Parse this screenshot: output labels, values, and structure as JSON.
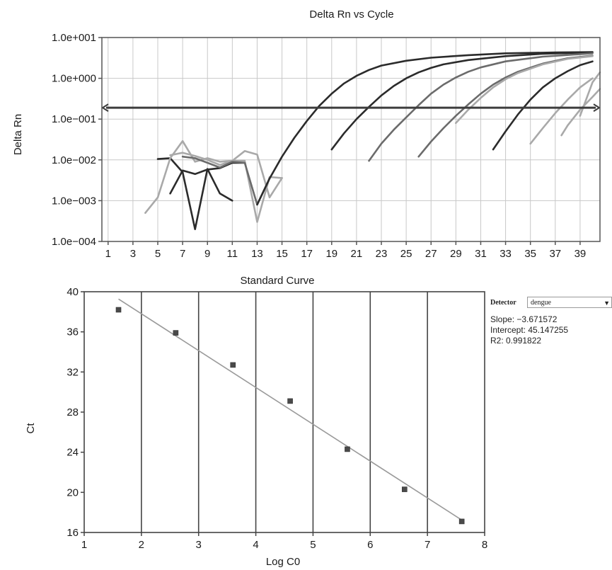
{
  "chart_data": [
    {
      "type": "line",
      "title": "Delta Rn vs Cycle",
      "ylabel": "Delta Rn",
      "xlabel": "",
      "yscale": "log",
      "ylim": [
        0.0001,
        10
      ],
      "xlim": [
        0.5,
        40.6
      ],
      "ytick_labels": [
        "1.0e+001",
        "1.0e+000",
        "1.0e−001",
        "1.0e−002",
        "1.0e−003",
        "1.0e−004"
      ],
      "ytick_values": [
        10,
        1,
        0.1,
        0.01,
        0.001,
        0.0001
      ],
      "xtick_labels": [
        "1",
        "3",
        "5",
        "7",
        "9",
        "11",
        "13",
        "15",
        "17",
        "19",
        "21",
        "23",
        "25",
        "27",
        "29",
        "31",
        "33",
        "35",
        "37",
        "39"
      ],
      "threshold": 0.19,
      "grid": true,
      "colors": {
        "dark": "#2b2b2b",
        "mid": "#6b6b6b",
        "light": "#a9a9a9",
        "threshold": "#3d3d3d",
        "grid": "#c8c8c8",
        "axis": "#555555"
      },
      "series": [
        {
          "tone": "dark",
          "points": [
            [
              5,
              0.0105
            ],
            [
              6,
              0.011
            ],
            [
              7,
              0.005
            ],
            [
              8,
              0.0002
            ],
            [
              9,
              0.006
            ],
            [
              10,
              0.0015
            ],
            [
              11,
              0.001
            ]
          ]
        },
        {
          "tone": "dark",
          "points": [
            [
              6,
              0.0015
            ],
            [
              7,
              0.0055
            ],
            [
              8,
              0.0045
            ],
            [
              9,
              0.0058
            ],
            [
              10,
              0.0063
            ],
            [
              11,
              0.0085
            ],
            [
              12,
              0.0085
            ]
          ]
        },
        {
          "tone": "light",
          "points": [
            [
              4,
              0.0005
            ],
            [
              5,
              0.0012
            ],
            [
              6,
              0.011
            ],
            [
              7,
              0.029
            ],
            [
              8,
              0.009
            ],
            [
              9,
              0.011
            ],
            [
              10,
              0.009
            ],
            [
              11,
              0.0095
            ],
            [
              12,
              0.0165
            ],
            [
              13,
              0.0135
            ],
            [
              14,
              0.0012
            ],
            [
              15,
              0.0036
            ]
          ]
        },
        {
          "tone": "light",
          "points": [
            [
              6,
              0.013
            ],
            [
              7,
              0.015
            ],
            [
              8,
              0.0125
            ],
            [
              9,
              0.01
            ],
            [
              10,
              0.0075
            ],
            [
              11,
              0.0095
            ],
            [
              12,
              0.0095
            ],
            [
              13,
              0.0003
            ],
            [
              14,
              0.0038
            ],
            [
              15,
              0.0036
            ]
          ]
        },
        {
          "tone": "mid",
          "points": [
            [
              7,
              0.012
            ],
            [
              8,
              0.011
            ],
            [
              9,
              0.0085
            ],
            [
              10,
              0.0065
            ],
            [
              11,
              0.009
            ],
            [
              12,
              0.0085
            ],
            [
              13,
              0.0008
            ],
            [
              14,
              0.0035
            ]
          ]
        },
        {
          "tone": "dark",
          "points": [
            [
              13,
              0.0008
            ],
            [
              14,
              0.0035
            ],
            [
              15,
              0.012
            ],
            [
              16,
              0.035
            ],
            [
              17,
              0.09
            ],
            [
              18,
              0.21
            ],
            [
              19,
              0.42
            ],
            [
              20,
              0.75
            ],
            [
              21,
              1.15
            ],
            [
              22,
              1.6
            ],
            [
              23,
              2.05
            ],
            [
              25,
              2.7
            ],
            [
              27,
              3.2
            ],
            [
              30,
              3.7
            ],
            [
              33,
              4.1
            ],
            [
              37,
              4.3
            ],
            [
              40,
              4.4
            ]
          ]
        },
        {
          "tone": "dark",
          "points": [
            [
              19,
              0.018
            ],
            [
              20,
              0.045
            ],
            [
              21,
              0.1
            ],
            [
              22,
              0.2
            ],
            [
              23,
              0.38
            ],
            [
              24,
              0.65
            ],
            [
              25,
              1.0
            ],
            [
              26,
              1.4
            ],
            [
              27,
              1.8
            ],
            [
              28,
              2.2
            ],
            [
              30,
              2.8
            ],
            [
              33,
              3.5
            ],
            [
              36,
              4.0
            ],
            [
              40,
              4.3
            ]
          ]
        },
        {
          "tone": "mid",
          "points": [
            [
              22,
              0.0095
            ],
            [
              23,
              0.025
            ],
            [
              24,
              0.055
            ],
            [
              25,
              0.11
            ],
            [
              26,
              0.22
            ],
            [
              27,
              0.42
            ],
            [
              28,
              0.7
            ],
            [
              29,
              1.05
            ],
            [
              30,
              1.45
            ],
            [
              31,
              1.85
            ],
            [
              33,
              2.6
            ],
            [
              36,
              3.4
            ],
            [
              40,
              4.1
            ]
          ]
        },
        {
          "tone": "mid",
          "points": [
            [
              26,
              0.012
            ],
            [
              27,
              0.028
            ],
            [
              28,
              0.06
            ],
            [
              29,
              0.12
            ],
            [
              30,
              0.23
            ],
            [
              31,
              0.42
            ],
            [
              32,
              0.7
            ],
            [
              33,
              1.05
            ],
            [
              34,
              1.45
            ],
            [
              36,
              2.3
            ],
            [
              38,
              3.1
            ],
            [
              40,
              3.6
            ]
          ]
        },
        {
          "tone": "light",
          "points": [
            [
              29,
              0.08
            ],
            [
              30,
              0.17
            ],
            [
              31,
              0.33
            ],
            [
              32,
              0.6
            ],
            [
              33,
              0.95
            ],
            [
              34,
              1.35
            ],
            [
              36,
              2.2
            ],
            [
              38,
              3.0
            ],
            [
              40,
              3.5
            ]
          ]
        },
        {
          "tone": "dark",
          "points": [
            [
              32,
              0.018
            ],
            [
              33,
              0.05
            ],
            [
              34,
              0.13
            ],
            [
              35,
              0.3
            ],
            [
              36,
              0.6
            ],
            [
              37,
              1.0
            ],
            [
              38,
              1.5
            ],
            [
              39,
              2.1
            ],
            [
              40,
              2.6
            ]
          ]
        },
        {
          "tone": "light",
          "points": [
            [
              35,
              0.025
            ],
            [
              36,
              0.06
            ],
            [
              37,
              0.14
            ],
            [
              38,
              0.3
            ],
            [
              39,
              0.6
            ],
            [
              40,
              1.0
            ]
          ]
        },
        {
          "tone": "light",
          "points": [
            [
              37.5,
              0.04
            ],
            [
              38,
              0.07
            ],
            [
              39,
              0.17
            ],
            [
              40,
              0.35
            ],
            [
              40.6,
              0.55
            ]
          ]
        },
        {
          "tone": "light",
          "points": [
            [
              39,
              0.12
            ],
            [
              40,
              0.8
            ],
            [
              40.6,
              1.4
            ]
          ]
        }
      ]
    },
    {
      "type": "scatter",
      "title": "Standard Curve",
      "xlabel": "Log C0",
      "ylabel": "Ct",
      "xlim": [
        1,
        8
      ],
      "ylim": [
        16,
        40
      ],
      "xtick_labels": [
        "1",
        "2",
        "3",
        "4",
        "5",
        "6",
        "7",
        "8"
      ],
      "ytick_labels": [
        "40",
        "36",
        "32",
        "28",
        "24",
        "20",
        "16"
      ],
      "points": [
        [
          1.6,
          38.2
        ],
        [
          2.6,
          35.9
        ],
        [
          3.6,
          32.7
        ],
        [
          4.6,
          29.1
        ],
        [
          5.6,
          24.3
        ],
        [
          6.6,
          20.3
        ],
        [
          7.6,
          17.1
        ]
      ],
      "fit_line": {
        "x": [
          1.6,
          7.6
        ],
        "y": [
          39.27,
          17.24
        ]
      },
      "grid": "vertical",
      "colors": {
        "point": "#4a4a4a",
        "fit": "#9a9a9a",
        "grid": "#444444",
        "axis": "#444444"
      }
    }
  ],
  "detector": {
    "label": "Detector",
    "value": "dengue",
    "arrow": "▼"
  },
  "stats": {
    "slope": "Slope: −3.671572",
    "intercept": "Intercept: 45.147255",
    "r2": "R2: 0.991822"
  }
}
